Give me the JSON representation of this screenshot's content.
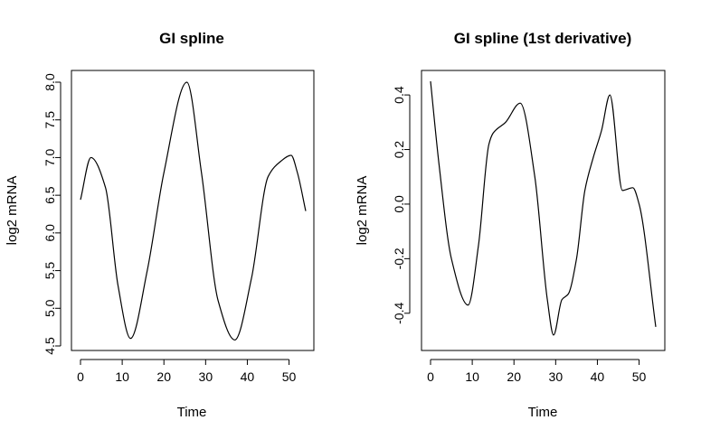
{
  "chart_data": [
    {
      "type": "line",
      "title": "GI spline",
      "xlabel": "Time",
      "ylabel": "log2 mRNA",
      "xlim": [
        0,
        54
      ],
      "ylim": [
        4.5,
        8.0
      ],
      "xticks": [
        0,
        10,
        20,
        30,
        40,
        50
      ],
      "yticks": [
        4.5,
        5.0,
        5.5,
        6.0,
        6.5,
        7.0,
        7.5,
        8.0
      ],
      "xtick_labels": [
        "0",
        "10",
        "20",
        "30",
        "40",
        "50"
      ],
      "ytick_labels": [
        "4.5",
        "5.0",
        "5.5",
        "6.0",
        "6.5",
        "7.0",
        "7.5",
        "8.0"
      ],
      "grid": false,
      "series": [
        {
          "x": [
            0,
            2.5,
            6,
            9,
            12,
            16,
            20,
            25.5,
            29,
            33,
            37,
            41,
            45,
            48,
            50.5,
            52,
            54
          ],
          "y": [
            6.44,
            7.0,
            6.6,
            5.3,
            4.6,
            5.5,
            6.8,
            8.0,
            6.8,
            5.1,
            4.58,
            5.4,
            6.75,
            6.95,
            7.03,
            6.8,
            6.29
          ]
        }
      ]
    },
    {
      "type": "line",
      "title": "GI spline (1st derivative)",
      "xlabel": "Time",
      "ylabel": "log2 mRNA",
      "xlim": [
        0,
        54
      ],
      "ylim": [
        -0.5,
        0.45
      ],
      "xticks": [
        0,
        10,
        20,
        30,
        40,
        50
      ],
      "yticks": [
        -0.4,
        -0.2,
        0.0,
        0.2,
        0.4
      ],
      "xtick_labels": [
        "0",
        "10",
        "20",
        "30",
        "40",
        "50"
      ],
      "ytick_labels": [
        "-0.4",
        "-0.2",
        "0.0",
        "0.2",
        "0.4"
      ],
      "grid": false,
      "series": [
        {
          "x": [
            0,
            2,
            5,
            9,
            11.5,
            14,
            15,
            18,
            21.5,
            25,
            28,
            29.5,
            31.5,
            33,
            35,
            37,
            39,
            41,
            43,
            46,
            48.5,
            50,
            54
          ],
          "y": [
            0.45,
            0.15,
            -0.2,
            -0.37,
            -0.15,
            0.22,
            0.26,
            0.3,
            0.37,
            0.1,
            -0.35,
            -0.48,
            -0.35,
            -0.33,
            -0.2,
            0.05,
            0.17,
            0.27,
            0.4,
            0.05,
            0.06,
            0.0,
            -0.45
          ]
        }
      ]
    }
  ]
}
